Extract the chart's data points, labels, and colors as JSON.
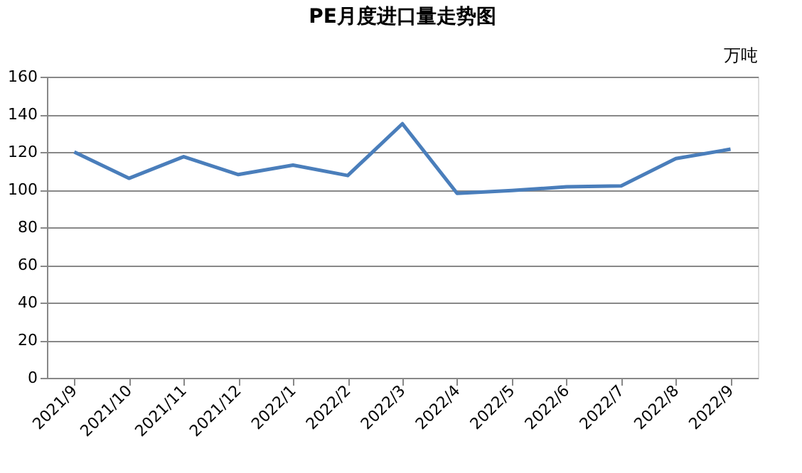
{
  "chart_data": {
    "type": "line",
    "title": "PE月度进口量走势图",
    "ylabel": "万吨",
    "categories": [
      "2021/9",
      "2021/10",
      "2021/11",
      "2021/12",
      "2022/1",
      "2022/2",
      "2022/3",
      "2022/4",
      "2022/5",
      "2022/6",
      "2022/7",
      "2022/8",
      "2022/9"
    ],
    "series": [
      {
        "color": "#4a7ebb",
        "values": [
          120,
          106,
          117.5,
          108,
          113,
          107.5,
          135,
          98,
          99.5,
          101.5,
          102,
          116.5,
          121.5
        ]
      }
    ],
    "ylim": [
      0,
      160
    ],
    "yticks": [
      0,
      20,
      40,
      60,
      80,
      100,
      120,
      140,
      160
    ],
    "grid": "y",
    "marker": "none",
    "line_style": "solid"
  }
}
